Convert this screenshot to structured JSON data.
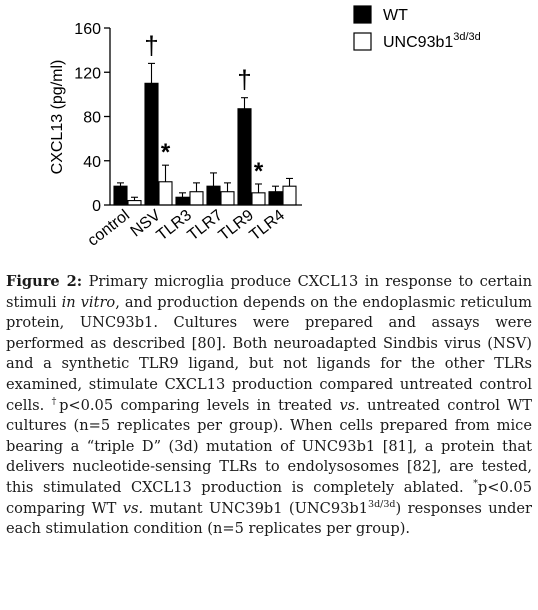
{
  "chart_data": {
    "type": "bar",
    "ylabel": "CXCL13 (pg/ml)",
    "xlabel": "",
    "ylim": [
      0,
      160
    ],
    "yticks": [
      0,
      40,
      80,
      120,
      160
    ],
    "categories": [
      "control",
      "NSV",
      "TLR3",
      "TLR7",
      "TLR9",
      "TLR4"
    ],
    "series": [
      {
        "name": "WT",
        "legend_base": "WT",
        "legend_sup": "",
        "fill": "#000000",
        "values": [
          17,
          110,
          7,
          17,
          87,
          12
        ],
        "errors": [
          3,
          18,
          4,
          12,
          10,
          5
        ]
      },
      {
        "name": "UNC93b1 3d/3d",
        "legend_base": "UNC93b1",
        "legend_sup": "3d/3d",
        "fill": "#ffffff",
        "values": [
          4,
          21,
          12,
          12,
          11,
          17
        ],
        "errors": [
          3,
          15,
          8,
          8,
          8,
          7
        ]
      }
    ],
    "annotations": [
      {
        "text": "†",
        "category": "NSV",
        "series": 0
      },
      {
        "text": "*",
        "category": "NSV",
        "series": 1
      },
      {
        "text": "†",
        "category": "TLR9",
        "series": 0
      },
      {
        "text": "*",
        "category": "TLR9",
        "series": 1
      }
    ],
    "legend_position": "top-right",
    "grid": false
  },
  "caption": {
    "label": "Figure 2:",
    "p1": " Primary microglia produce CXCL13 in response to certain stimuli ",
    "invitro": "in vitro",
    "p2": ", and production depends on the endoplasmic reticulum protein, UNC93b1. Cultures were prepared and assays were performed as described [80]. Both neuroadapted Sindbis virus (NSV) and a synthetic TLR9 ligand, but not ligands for the other TLRs examined, stimulate CXCL13 production compared untreated control cells. ",
    "dagger": "†",
    "p3": "p<0.05 comparing levels in treated ",
    "vs1": "vs.",
    "p4": " untreated control WT cultures (n=5 replicates per group). When cells prepared from mice bearing a “triple D” (3d) mutation of UNC93b1 [81], a protein that delivers nucleotide-sensing TLRs to endolysosomes [82], are tested, this stimulated CXCL13 production is completely ablated. ",
    "star": "*",
    "p5": "p<0.05 comparing WT ",
    "vs2": "vs.",
    "p6": " mutant UNC39b1 (UNC93b1",
    "sup2": "3d/3d",
    "p7": ") responses under each stimulation condition (n=5 replicates per group)."
  }
}
